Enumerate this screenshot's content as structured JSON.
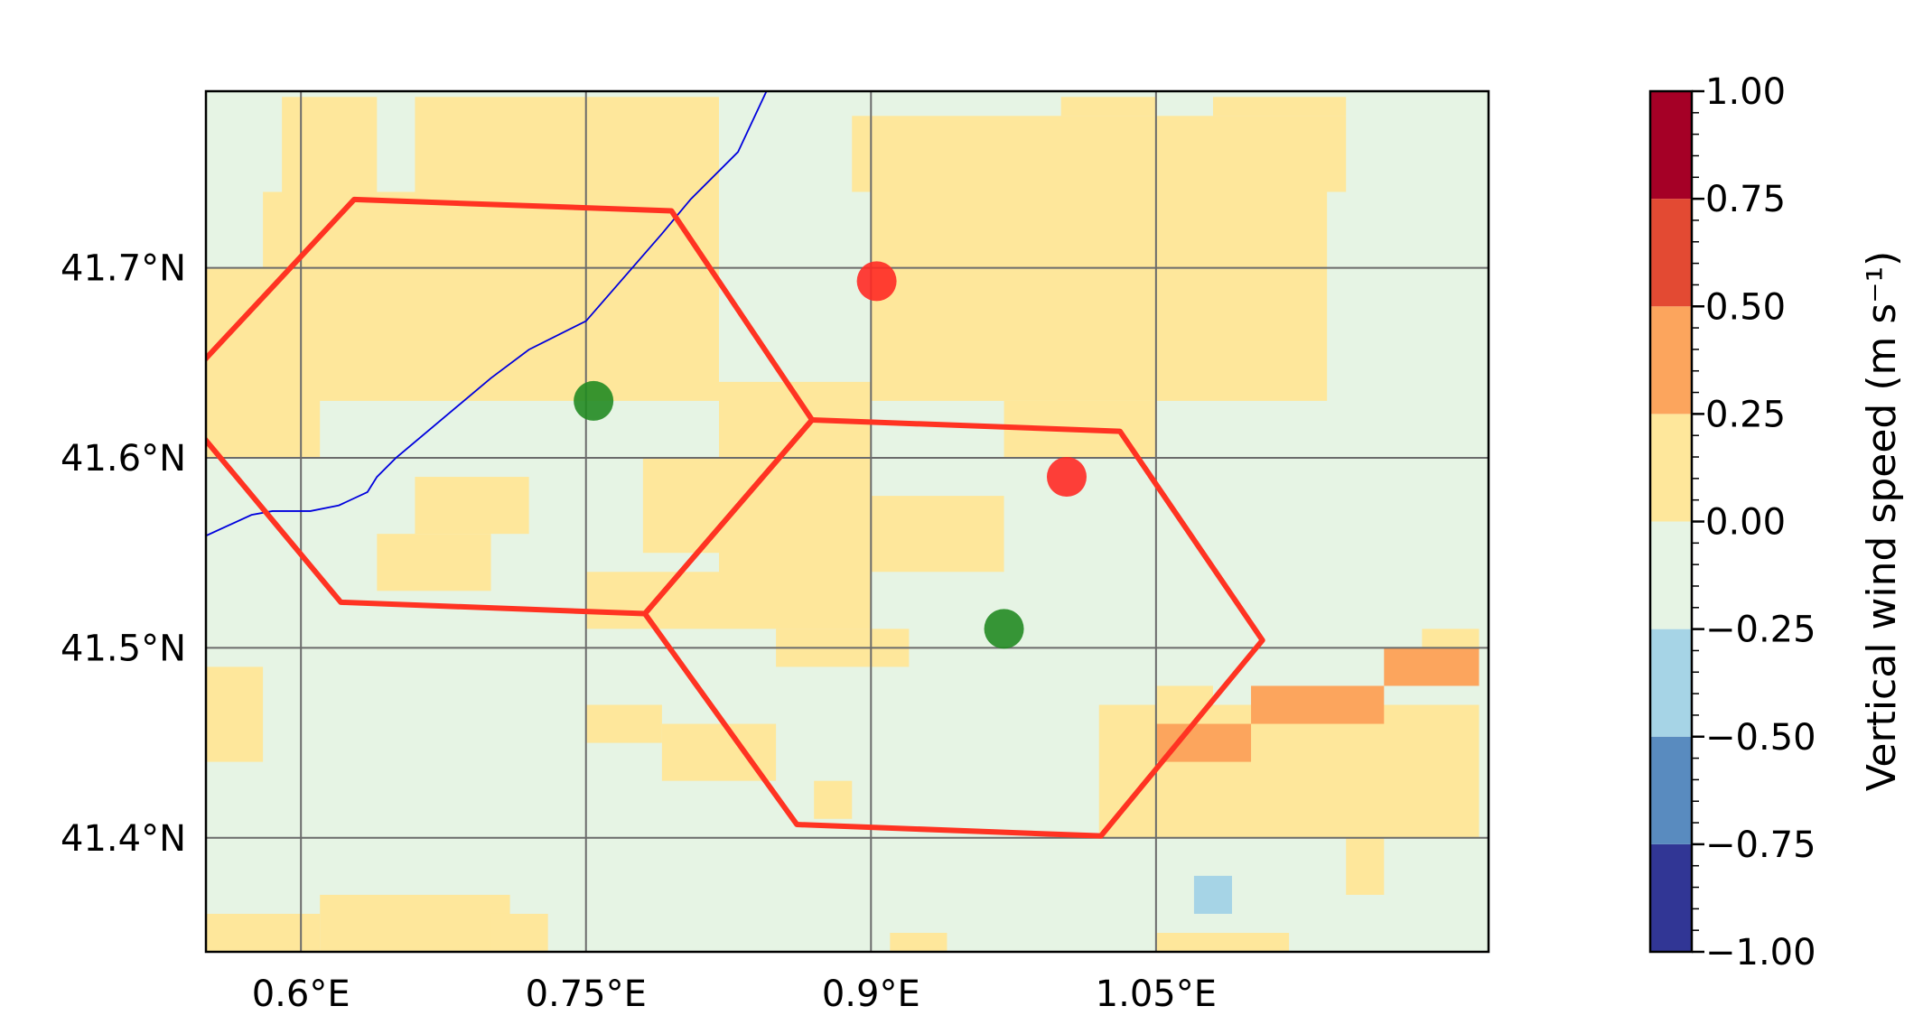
{
  "map": {
    "lon_range": [
      0.55,
      1.225
    ],
    "lat_range": [
      41.34,
      41.793
    ],
    "grid_lons": [
      0.6,
      0.75,
      0.9,
      1.05
    ],
    "grid_lats": [
      41.4,
      41.5,
      41.6,
      41.7
    ],
    "lon_tick_labels": [
      "0.6°E",
      "0.75°E",
      "0.9°E",
      "1.05°E"
    ],
    "lat_tick_labels": [
      "41.4°N",
      "41.5°N",
      "41.6°N",
      "41.7°N"
    ],
    "background_color": "#e6f4e4",
    "positive_patches": [
      {
        "lon": [
          0.55,
          0.58
        ],
        "lat": [
          41.44,
          41.49
        ],
        "level": 1
      },
      {
        "lon": [
          0.55,
          0.61
        ],
        "lat": [
          41.6,
          41.7
        ],
        "level": 1
      },
      {
        "lon": [
          0.58,
          0.82
        ],
        "lat": [
          41.63,
          41.74
        ],
        "level": 1
      },
      {
        "lon": [
          0.59,
          0.64
        ],
        "lat": [
          41.74,
          41.79
        ],
        "level": 1
      },
      {
        "lon": [
          0.66,
          0.82
        ],
        "lat": [
          41.74,
          41.79
        ],
        "level": 1
      },
      {
        "lon": [
          0.78,
          0.9
        ],
        "lat": [
          41.55,
          41.6
        ],
        "level": 1
      },
      {
        "lon": [
          0.82,
          0.9
        ],
        "lat": [
          41.51,
          41.64
        ],
        "level": 1
      },
      {
        "lon": [
          0.66,
          0.72
        ],
        "lat": [
          41.56,
          41.59
        ],
        "level": 1
      },
      {
        "lon": [
          0.64,
          0.7
        ],
        "lat": [
          41.53,
          41.56
        ],
        "level": 1
      },
      {
        "lon": [
          0.75,
          0.82
        ],
        "lat": [
          41.51,
          41.54
        ],
        "level": 1
      },
      {
        "lon": [
          0.85,
          0.92
        ],
        "lat": [
          41.49,
          41.51
        ],
        "level": 1
      },
      {
        "lon": [
          0.9,
          0.97
        ],
        "lat": [
          41.54,
          41.58
        ],
        "level": 1
      },
      {
        "lon": [
          0.9,
          1.14
        ],
        "lat": [
          41.63,
          41.74
        ],
        "level": 1
      },
      {
        "lon": [
          0.89,
          1.15
        ],
        "lat": [
          41.74,
          41.78
        ],
        "level": 1
      },
      {
        "lon": [
          1.0,
          1.05
        ],
        "lat": [
          41.78,
          41.79
        ],
        "level": 1
      },
      {
        "lon": [
          0.97,
          1.05
        ],
        "lat": [
          41.6,
          41.63
        ],
        "level": 1
      },
      {
        "lon": [
          1.08,
          1.15
        ],
        "lat": [
          41.78,
          41.79
        ],
        "level": 1
      },
      {
        "lon": [
          0.75,
          0.79
        ],
        "lat": [
          41.45,
          41.47
        ],
        "level": 1
      },
      {
        "lon": [
          0.79,
          0.85
        ],
        "lat": [
          41.43,
          41.46
        ],
        "level": 1
      },
      {
        "lon": [
          0.87,
          0.89
        ],
        "lat": [
          41.41,
          41.43
        ],
        "level": 1
      },
      {
        "lon": [
          1.02,
          1.22
        ],
        "lat": [
          41.4,
          41.47
        ],
        "level": 1
      },
      {
        "lon": [
          1.05,
          1.08
        ],
        "lat": [
          41.46,
          41.48
        ],
        "level": 1
      },
      {
        "lon": [
          1.19,
          1.22
        ],
        "lat": [
          41.49,
          41.51
        ],
        "level": 1
      },
      {
        "lon": [
          1.15,
          1.17
        ],
        "lat": [
          41.37,
          41.4
        ],
        "level": 1
      },
      {
        "lon": [
          0.55,
          0.61
        ],
        "lat": [
          41.34,
          41.36
        ],
        "level": 1
      },
      {
        "lon": [
          0.61,
          0.71
        ],
        "lat": [
          41.34,
          41.37
        ],
        "level": 1
      },
      {
        "lon": [
          0.7,
          0.73
        ],
        "lat": [
          41.34,
          41.36
        ],
        "level": 1
      },
      {
        "lon": [
          0.91,
          0.94
        ],
        "lat": [
          41.34,
          41.35
        ],
        "level": 1
      },
      {
        "lon": [
          1.05,
          1.12
        ],
        "lat": [
          41.34,
          41.35
        ],
        "level": 1
      },
      {
        "lon": [
          1.05,
          1.1
        ],
        "lat": [
          41.44,
          41.46
        ],
        "level": 2
      },
      {
        "lon": [
          1.1,
          1.17
        ],
        "lat": [
          41.46,
          41.48
        ],
        "level": 2
      },
      {
        "lon": [
          1.17,
          1.22
        ],
        "lat": [
          41.48,
          41.5
        ],
        "level": 2
      }
    ],
    "negative_patches": [
      {
        "lon": [
          0.99,
          1.13
        ],
        "lat": [
          41.35,
          41.37
        ],
        "level": -1
      },
      {
        "lon": [
          1.04,
          1.13
        ],
        "lat": [
          41.37,
          41.38
        ],
        "level": -1
      },
      {
        "lon": [
          0.97,
          0.99
        ],
        "lat": [
          41.35,
          41.36
        ],
        "level": -1
      },
      {
        "lon": [
          1.07,
          1.09
        ],
        "lat": [
          41.36,
          41.38
        ],
        "level": -2
      }
    ],
    "coastline": [
      [
        0.55,
        41.559
      ],
      [
        0.574,
        41.57
      ],
      [
        0.585,
        41.572
      ],
      [
        0.605,
        41.572
      ],
      [
        0.62,
        41.575
      ],
      [
        0.635,
        41.582
      ],
      [
        0.64,
        41.59
      ],
      [
        0.65,
        41.6
      ],
      [
        0.7,
        41.642
      ],
      [
        0.72,
        41.657
      ],
      [
        0.75,
        41.672
      ],
      [
        0.79,
        41.718
      ],
      [
        0.805,
        41.736
      ],
      [
        0.83,
        41.761
      ],
      [
        0.845,
        41.793
      ]
    ],
    "coastline_color": "#0000dd",
    "hexagons": [
      {
        "name": "hexagon-west",
        "points": [
          [
            0.628,
            41.736
          ],
          [
            0.795,
            41.73
          ],
          [
            0.869,
            41.62
          ],
          [
            0.781,
            41.518
          ],
          [
            0.621,
            41.524
          ],
          [
            0.531,
            41.632
          ]
        ]
      },
      {
        "name": "hexagon-east",
        "points": [
          [
            0.869,
            41.62
          ],
          [
            1.031,
            41.614
          ],
          [
            1.106,
            41.504
          ],
          [
            1.021,
            41.401
          ],
          [
            0.861,
            41.407
          ],
          [
            0.781,
            41.518
          ]
        ]
      }
    ],
    "hexagon_color": "#ff3322",
    "markers": [
      {
        "name": "red-marker-north",
        "lon": 0.903,
        "lat": 41.693,
        "color": "#ff2a25"
      },
      {
        "name": "red-marker-east",
        "lon": 1.003,
        "lat": 41.59,
        "color": "#ff2a25"
      },
      {
        "name": "green-marker-west",
        "lon": 0.754,
        "lat": 41.63,
        "color": "#228b22"
      },
      {
        "name": "green-marker-east",
        "lon": 0.97,
        "lat": 41.51,
        "color": "#228b22"
      }
    ]
  },
  "colorbar": {
    "label": "Vertical wind speed (m s⁻¹)",
    "range": [
      -1.0,
      1.0
    ],
    "tick_values": [
      -1.0,
      -0.75,
      -0.5,
      -0.25,
      0.0,
      0.25,
      0.5,
      0.75,
      1.0
    ],
    "tick_labels": [
      "−1.00",
      "−0.75",
      "−0.50",
      "−0.25",
      "0.00",
      "0.25",
      "0.50",
      "0.75",
      "1.00"
    ],
    "bins": [
      {
        "from": -1.0,
        "to": -0.75,
        "color": "#313695",
        "level": -4
      },
      {
        "from": -0.75,
        "to": -0.5,
        "color": "#598bbf",
        "level": -3
      },
      {
        "from": -0.5,
        "to": -0.25,
        "color": "#a6d4e6",
        "level": -2
      },
      {
        "from": -0.25,
        "to": 0.0,
        "color": "#e6f4e4",
        "level": -1
      },
      {
        "from": 0.0,
        "to": 0.25,
        "color": "#fee79b",
        "level": 1
      },
      {
        "from": 0.25,
        "to": 0.5,
        "color": "#fca55d",
        "level": 2
      },
      {
        "from": 0.5,
        "to": 0.75,
        "color": "#e34a33",
        "level": 3
      },
      {
        "from": 0.75,
        "to": 1.0,
        "color": "#a50026",
        "level": 4
      }
    ]
  }
}
